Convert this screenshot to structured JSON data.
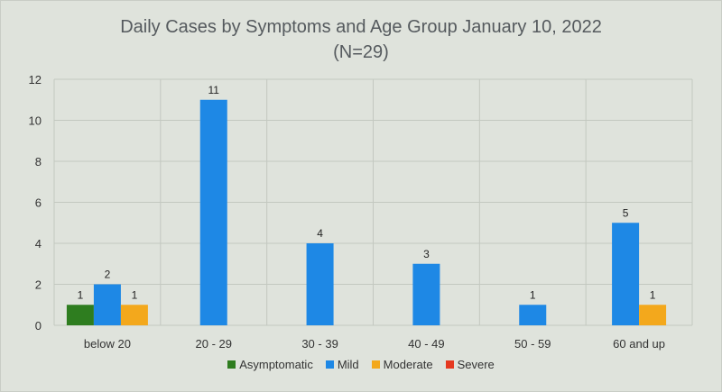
{
  "chart_data": {
    "type": "bar",
    "title": "Daily Cases by Symptoms and Age Group January 10, 2022",
    "subtitle": "(N=29)",
    "categories": [
      "below 20",
      "20 - 29",
      "30 - 39",
      "40 - 49",
      "50 - 59",
      "60 and up"
    ],
    "series": [
      {
        "name": "Asymptomatic",
        "color": "#2e7d1f",
        "values": [
          1,
          0,
          0,
          0,
          0,
          0
        ]
      },
      {
        "name": "Mild",
        "color": "#1e88e5",
        "values": [
          2,
          11,
          4,
          3,
          1,
          5
        ]
      },
      {
        "name": "Moderate",
        "color": "#f3a81c",
        "values": [
          1,
          0,
          0,
          0,
          0,
          1
        ]
      },
      {
        "name": "Severe",
        "color": "#e53920",
        "values": [
          0,
          0,
          0,
          0,
          0,
          0
        ]
      }
    ],
    "yticks": [
      "0",
      "2",
      "4",
      "6",
      "8",
      "10",
      "12"
    ],
    "ylim": [
      0,
      12
    ],
    "grid": true,
    "legend_position": "bottom"
  }
}
